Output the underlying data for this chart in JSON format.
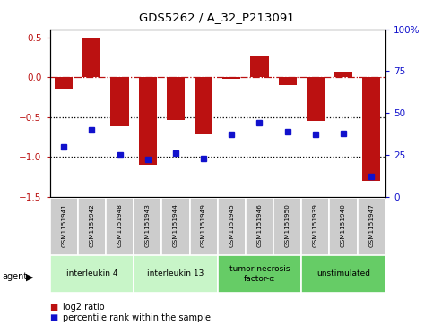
{
  "title": "GDS5262 / A_32_P213091",
  "samples": [
    "GSM1151941",
    "GSM1151942",
    "GSM1151948",
    "GSM1151943",
    "GSM1151944",
    "GSM1151949",
    "GSM1151945",
    "GSM1151946",
    "GSM1151950",
    "GSM1151939",
    "GSM1151940",
    "GSM1151947"
  ],
  "log2_ratio": [
    -0.15,
    0.48,
    -0.62,
    -1.1,
    -0.54,
    -0.72,
    -0.02,
    0.27,
    -0.1,
    -0.55,
    0.07,
    -1.3
  ],
  "percentile": [
    30,
    40,
    25,
    22,
    26,
    23,
    37,
    44,
    39,
    37,
    38,
    12
  ],
  "agent_groups": [
    {
      "label": "interleukin 4",
      "start": 0,
      "end": 2,
      "color": "#c8f5c8"
    },
    {
      "label": "interleukin 13",
      "start": 3,
      "end": 5,
      "color": "#c8f5c8"
    },
    {
      "label": "tumor necrosis\nfactor-α",
      "start": 6,
      "end": 8,
      "color": "#66cc66"
    },
    {
      "label": "unstimulated",
      "start": 9,
      "end": 11,
      "color": "#66cc66"
    }
  ],
  "bar_color": "#bb1111",
  "dot_color": "#1111cc",
  "ylim_left": [
    -1.5,
    0.6
  ],
  "ylim_right": [
    0,
    100
  ],
  "yticks_left": [
    -1.5,
    -1.0,
    -0.5,
    0.0,
    0.5
  ],
  "yticks_right": [
    0,
    25,
    50,
    75,
    100
  ],
  "hline_y": 0.0,
  "dotted_lines": [
    -0.5,
    -1.0
  ],
  "sample_box_color": "#cccccc",
  "legend_log2_label": "log2 ratio",
  "legend_pct_label": "percentile rank within the sample"
}
